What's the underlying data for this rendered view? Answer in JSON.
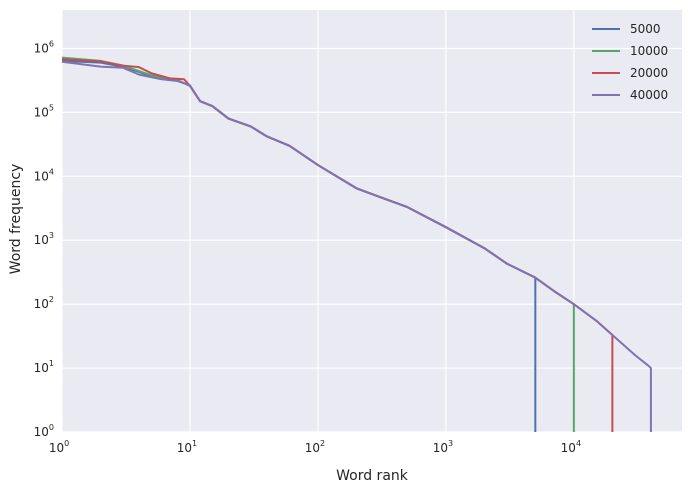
{
  "chart_data": {
    "type": "line",
    "title": "",
    "xlabel": "Word rank",
    "ylabel": "Word frequency",
    "xscale": "log",
    "yscale": "log",
    "xlim": [
      1,
      70000
    ],
    "ylim": [
      1,
      4000000
    ],
    "grid": true,
    "legend_position": "top-right",
    "x_ticks": [
      {
        "base": "10",
        "exp": "0"
      },
      {
        "base": "10",
        "exp": "1"
      },
      {
        "base": "10",
        "exp": "2"
      },
      {
        "base": "10",
        "exp": "3"
      },
      {
        "base": "10",
        "exp": "4"
      }
    ],
    "y_ticks": [
      {
        "base": "10",
        "exp": "0"
      },
      {
        "base": "10",
        "exp": "1"
      },
      {
        "base": "10",
        "exp": "2"
      },
      {
        "base": "10",
        "exp": "3"
      },
      {
        "base": "10",
        "exp": "4"
      },
      {
        "base": "10",
        "exp": "5"
      },
      {
        "base": "10",
        "exp": "6"
      }
    ],
    "series": [
      {
        "name": "5000",
        "color": "#4c72b0",
        "points": [
          [
            1,
            640000
          ],
          [
            2,
            600000
          ],
          [
            3,
            520000
          ],
          [
            5,
            370000
          ],
          [
            8,
            320000
          ],
          [
            10,
            260000
          ],
          [
            12,
            150000
          ],
          [
            15,
            125000
          ],
          [
            20,
            80000
          ],
          [
            30,
            60000
          ],
          [
            40,
            42000
          ],
          [
            60,
            30000
          ],
          [
            100,
            15000
          ],
          [
            200,
            6500
          ],
          [
            300,
            4800
          ],
          [
            500,
            3300
          ],
          [
            1000,
            1600
          ],
          [
            2000,
            750
          ],
          [
            3000,
            430
          ],
          [
            5000,
            260
          ],
          [
            5000,
            1
          ]
        ]
      },
      {
        "name": "10000",
        "color": "#55a868",
        "points": [
          [
            1,
            720000
          ],
          [
            2,
            640000
          ],
          [
            3,
            540000
          ],
          [
            5,
            380000
          ],
          [
            8,
            320000
          ],
          [
            10,
            260000
          ],
          [
            12,
            150000
          ],
          [
            15,
            125000
          ],
          [
            20,
            80000
          ],
          [
            30,
            60000
          ],
          [
            40,
            42000
          ],
          [
            60,
            30000
          ],
          [
            100,
            15000
          ],
          [
            200,
            6500
          ],
          [
            300,
            4800
          ],
          [
            500,
            3300
          ],
          [
            1000,
            1600
          ],
          [
            2000,
            750
          ],
          [
            3000,
            430
          ],
          [
            5000,
            260
          ],
          [
            7000,
            160
          ],
          [
            10000,
            100
          ],
          [
            10000,
            1
          ]
        ]
      },
      {
        "name": "20000",
        "color": "#c44e52",
        "points": [
          [
            1,
            680000
          ],
          [
            2,
            630000
          ],
          [
            3,
            540000
          ],
          [
            4,
            510000
          ],
          [
            5,
            410000
          ],
          [
            7,
            340000
          ],
          [
            9,
            330000
          ],
          [
            10,
            260000
          ],
          [
            12,
            150000
          ],
          [
            15,
            125000
          ],
          [
            20,
            80000
          ],
          [
            30,
            60000
          ],
          [
            40,
            42000
          ],
          [
            60,
            30000
          ],
          [
            100,
            15000
          ],
          [
            200,
            6500
          ],
          [
            300,
            4800
          ],
          [
            500,
            3300
          ],
          [
            1000,
            1600
          ],
          [
            2000,
            750
          ],
          [
            3000,
            430
          ],
          [
            5000,
            260
          ],
          [
            7000,
            160
          ],
          [
            10000,
            100
          ],
          [
            15000,
            55
          ],
          [
            20000,
            33
          ],
          [
            20000,
            1
          ]
        ]
      },
      {
        "name": "40000",
        "color": "#8172b2",
        "points": [
          [
            1,
            620000
          ],
          [
            2,
            520000
          ],
          [
            3,
            500000
          ],
          [
            4,
            390000
          ],
          [
            6,
            330000
          ],
          [
            8,
            310000
          ],
          [
            10,
            265000
          ],
          [
            12,
            150000
          ],
          [
            15,
            125000
          ],
          [
            20,
            80000
          ],
          [
            30,
            60000
          ],
          [
            40,
            42000
          ],
          [
            60,
            30000
          ],
          [
            100,
            15000
          ],
          [
            200,
            6500
          ],
          [
            300,
            4800
          ],
          [
            500,
            3300
          ],
          [
            1000,
            1600
          ],
          [
            2000,
            750
          ],
          [
            3000,
            430
          ],
          [
            5000,
            260
          ],
          [
            7000,
            160
          ],
          [
            10000,
            100
          ],
          [
            15000,
            55
          ],
          [
            20000,
            33
          ],
          [
            30000,
            16
          ],
          [
            38000,
            11
          ],
          [
            40000,
            10
          ],
          [
            40000,
            1
          ]
        ]
      }
    ]
  }
}
